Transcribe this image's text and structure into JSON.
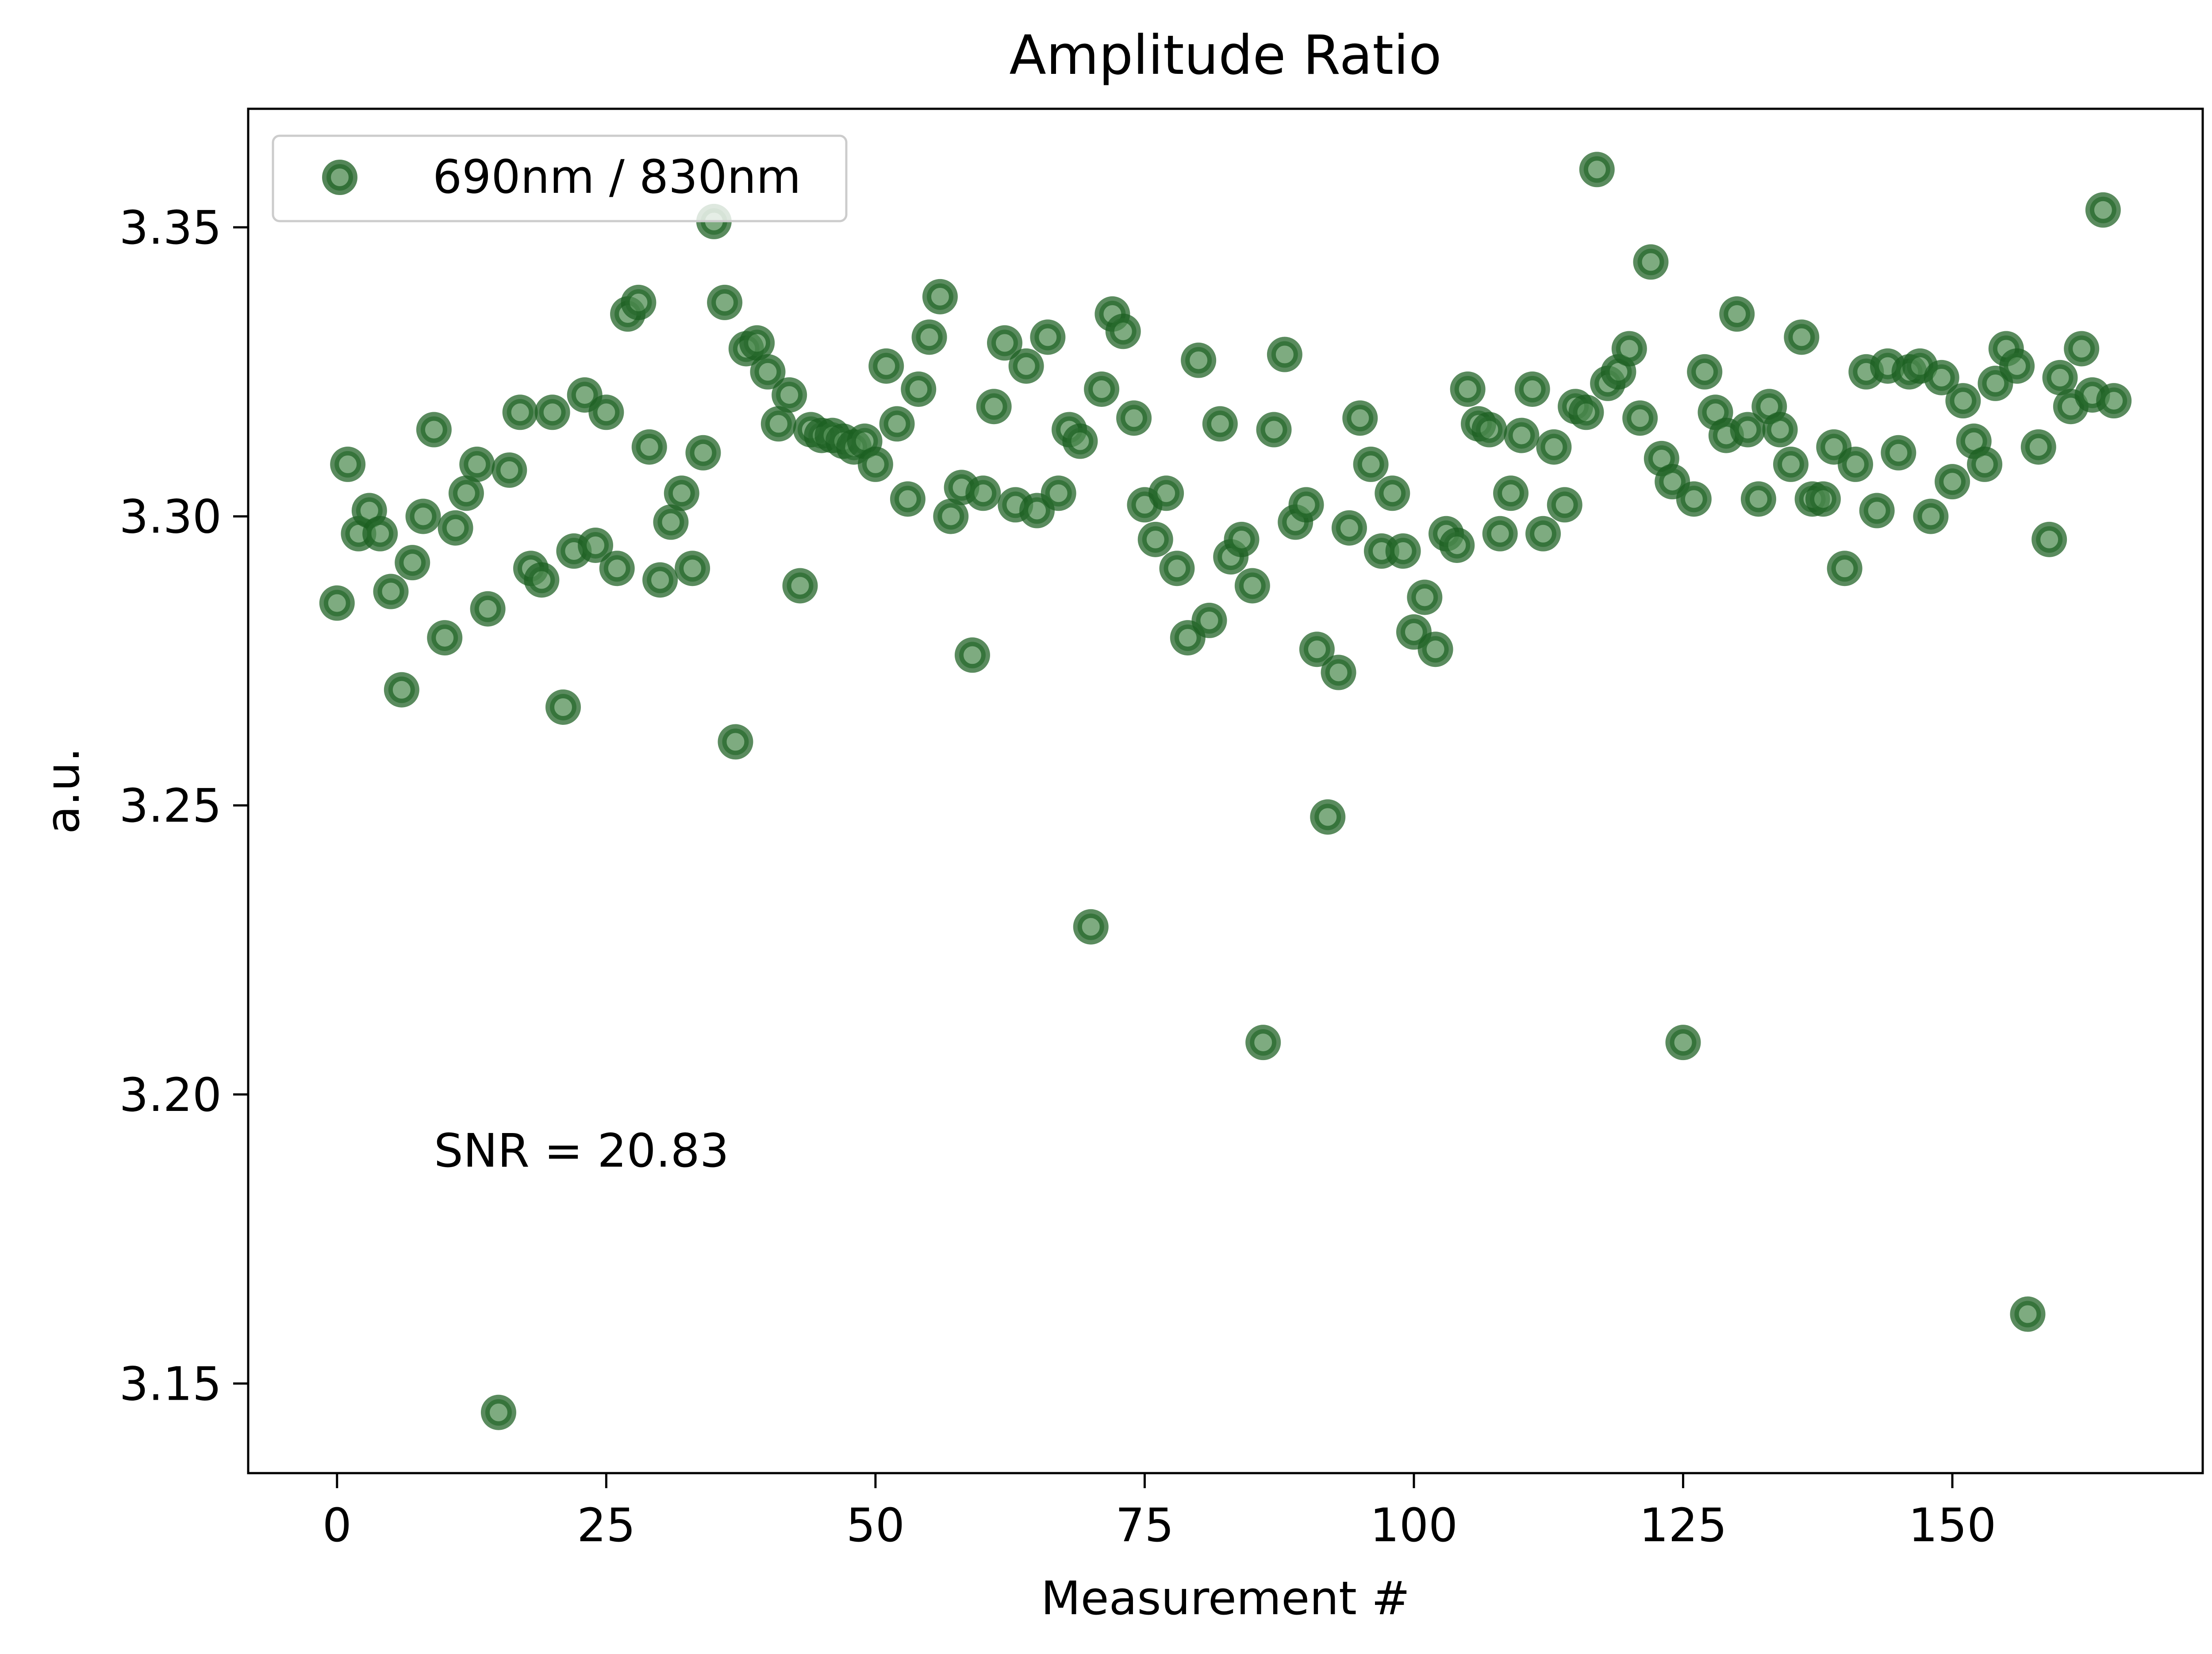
{
  "chart_data": {
    "type": "scatter",
    "title": "Amplitude Ratio",
    "xlabel": "Measurement #",
    "ylabel": "a.u.",
    "xlim": [
      -8.25,
      173.25
    ],
    "ylim": [
      3.1345,
      3.3705
    ],
    "xticks": [
      {
        "value": 0,
        "label": "0"
      },
      {
        "value": 25,
        "label": "25"
      },
      {
        "value": 50,
        "label": "50"
      },
      {
        "value": 75,
        "label": "75"
      },
      {
        "value": 100,
        "label": "100"
      },
      {
        "value": 125,
        "label": "125"
      },
      {
        "value": 150,
        "label": "150"
      }
    ],
    "yticks": [
      {
        "value": 3.15,
        "label": "3.15"
      },
      {
        "value": 3.2,
        "label": "3.20"
      },
      {
        "value": 3.25,
        "label": "3.25"
      },
      {
        "value": 3.3,
        "label": "3.30"
      },
      {
        "value": 3.35,
        "label": "3.35"
      }
    ],
    "grid": false,
    "legend": {
      "position": "top-left"
    },
    "annotation": {
      "text": "SNR = 20.83",
      "x": 9,
      "y": 3.1875
    },
    "series": [
      {
        "name": "690nm / 830nm",
        "color": "#2e7d32",
        "marker": "circle",
        "x": [
          0,
          1,
          2,
          3,
          4,
          5,
          6,
          7,
          8,
          9,
          10,
          11,
          12,
          13,
          14,
          15,
          16,
          17,
          18,
          19,
          20,
          21,
          22,
          23,
          24,
          25,
          26,
          27,
          28,
          29,
          30,
          31,
          32,
          33,
          34,
          35,
          36,
          37,
          38,
          39,
          40,
          41,
          42,
          43,
          44,
          45,
          46,
          47,
          48,
          49,
          50,
          51,
          52,
          53,
          54,
          55,
          56,
          57,
          58,
          59,
          60,
          61,
          62,
          63,
          64,
          65,
          66,
          67,
          68,
          69,
          70,
          71,
          72,
          73,
          74,
          75,
          76,
          77,
          78,
          79,
          80,
          81,
          82,
          83,
          84,
          85,
          86,
          87,
          88,
          89,
          90,
          91,
          92,
          93,
          94,
          95,
          96,
          97,
          98,
          99,
          100,
          101,
          102,
          103,
          104,
          105,
          106,
          107,
          108,
          109,
          110,
          111,
          112,
          113,
          114,
          115,
          116,
          117,
          118,
          119,
          120,
          121,
          122,
          123,
          124,
          125,
          126,
          127,
          128,
          129,
          130,
          131,
          132,
          133,
          134,
          135,
          136,
          137,
          138,
          139,
          140,
          141,
          142,
          143,
          144,
          145,
          146,
          147,
          148,
          149,
          150,
          151,
          152,
          153,
          154,
          155,
          156,
          157,
          158,
          159,
          160,
          161,
          162,
          163,
          164,
          165
        ],
        "y": [
          3.285,
          3.309,
          3.297,
          3.301,
          3.297,
          3.287,
          3.27,
          3.292,
          3.3,
          3.315,
          3.279,
          3.298,
          3.304,
          3.309,
          3.284,
          3.145,
          3.308,
          3.318,
          3.291,
          3.289,
          3.318,
          3.267,
          3.294,
          3.321,
          3.295,
          3.318,
          3.291,
          3.335,
          3.337,
          3.312,
          3.289,
          3.299,
          3.304,
          3.291,
          3.311,
          3.351,
          3.337,
          3.261,
          3.329,
          3.33,
          3.325,
          3.316,
          3.321,
          3.288,
          3.315,
          3.314,
          3.314,
          3.313,
          3.312,
          3.313,
          3.309,
          3.326,
          3.316,
          3.303,
          3.322,
          3.331,
          3.338,
          3.3,
          3.305,
          3.276,
          3.304,
          3.319,
          3.33,
          3.302,
          3.326,
          3.301,
          3.331,
          3.304,
          3.315,
          3.313,
          3.229,
          3.322,
          3.335,
          3.332,
          3.317,
          3.302,
          3.296,
          3.304,
          3.291,
          3.279,
          3.327,
          3.282,
          3.316,
          3.293,
          3.296,
          3.288,
          3.209,
          3.315,
          3.328,
          3.299,
          3.302,
          3.277,
          3.248,
          3.273,
          3.298,
          3.317,
          3.309,
          3.294,
          3.304,
          3.294,
          3.28,
          3.286,
          3.277,
          3.297,
          3.295,
          3.322,
          3.316,
          3.315,
          3.297,
          3.304,
          3.314,
          3.322,
          3.297,
          3.312,
          3.302,
          3.319,
          3.318,
          3.36,
          3.323,
          3.325,
          3.329,
          3.317,
          3.344,
          3.31,
          3.306,
          3.209,
          3.303,
          3.325,
          3.318,
          3.314,
          3.335,
          3.315,
          3.303,
          3.319,
          3.315,
          3.309,
          3.331,
          3.303,
          3.303,
          3.312,
          3.291,
          3.309,
          3.325,
          3.301,
          3.326,
          3.311,
          3.325,
          3.326,
          3.3,
          3.324,
          3.306,
          3.32,
          3.313,
          3.309,
          3.323,
          3.329,
          3.326,
          3.162,
          3.312,
          3.296,
          3.324,
          3.319,
          3.329,
          3.321,
          3.353,
          3.32
        ]
      }
    ]
  }
}
